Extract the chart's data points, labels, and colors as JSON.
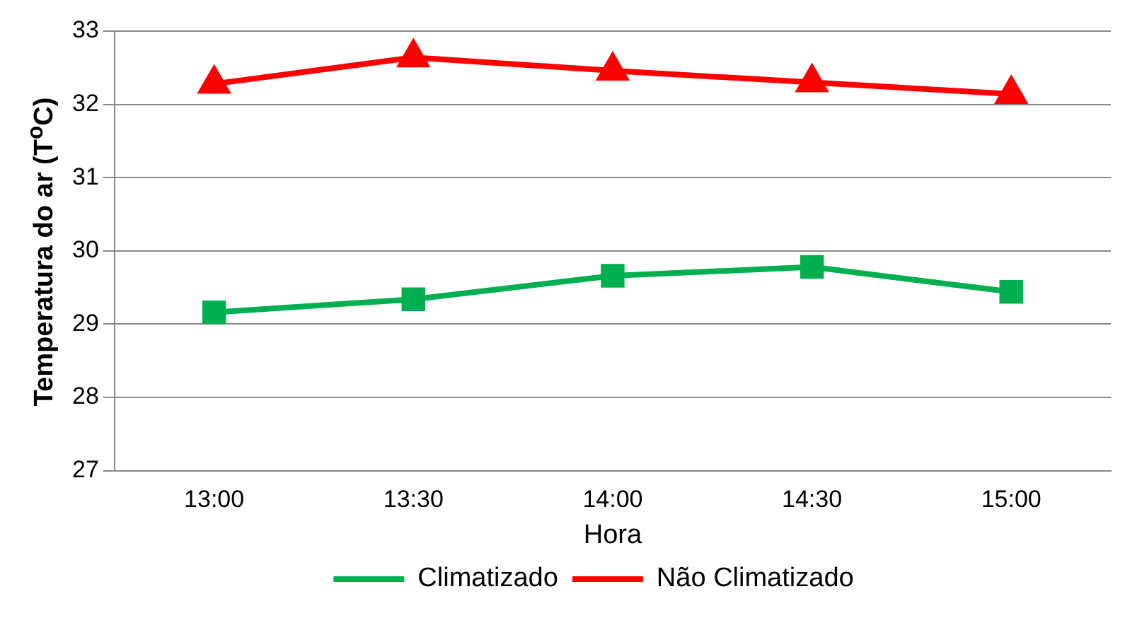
{
  "chart_data": {
    "type": "line",
    "xlabel": "Hora",
    "ylabel": "Temperatura do ar (T$^{o}$C)",
    "categories": [
      "13:00",
      "13:30",
      "14:00",
      "14:30",
      "15:00"
    ],
    "series": [
      {
        "name": "Climatizado",
        "color": "#00b050",
        "marker": "square",
        "values": [
          29.16,
          29.34,
          29.66,
          29.78,
          29.44
        ]
      },
      {
        "name": "Não Climatizado",
        "color": "#ff0000",
        "marker": "triangle",
        "values": [
          32.28,
          32.64,
          32.46,
          32.3,
          32.14
        ]
      }
    ],
    "ylim": [
      27,
      33
    ],
    "yticks": [
      27,
      28,
      29,
      30,
      31,
      32,
      33
    ],
    "grid": "y",
    "legend": "bottom"
  }
}
